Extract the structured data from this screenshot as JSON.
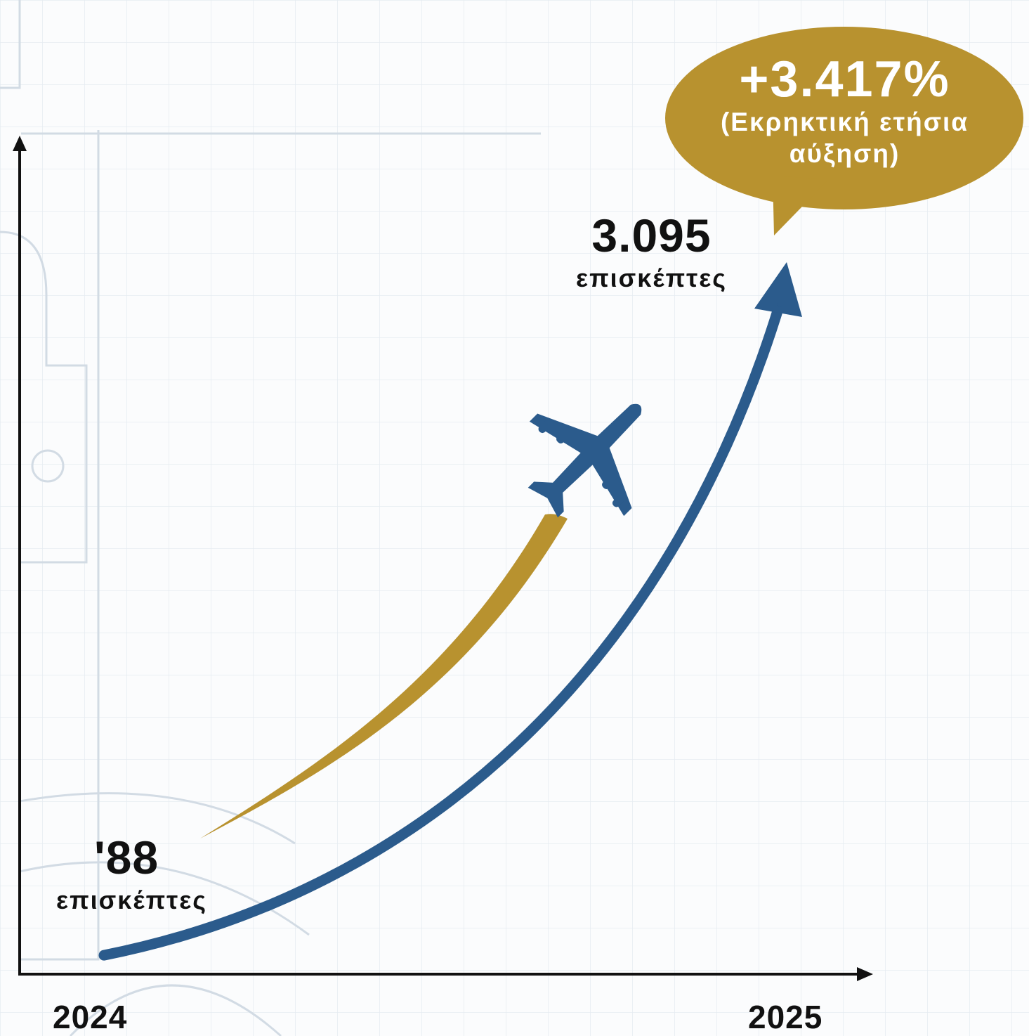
{
  "chart_data": {
    "type": "line",
    "x": [
      "2024",
      "2025"
    ],
    "series": [
      {
        "values": [
          88,
          3095
        ],
        "color": "#2b5b8c"
      }
    ],
    "points": [
      {
        "value": "'88",
        "unit": "επισκέπτες"
      },
      {
        "value": "3.095",
        "unit": "επισκέπτες"
      }
    ],
    "annotation": {
      "value": "+3.417%",
      "text_line1": "(Εκρηκτική ετήσια",
      "text_line2": "αύξηση)",
      "color": "#b8922f"
    },
    "accent_color": "#b8922f",
    "icon": "airplane-icon",
    "grid": true
  }
}
